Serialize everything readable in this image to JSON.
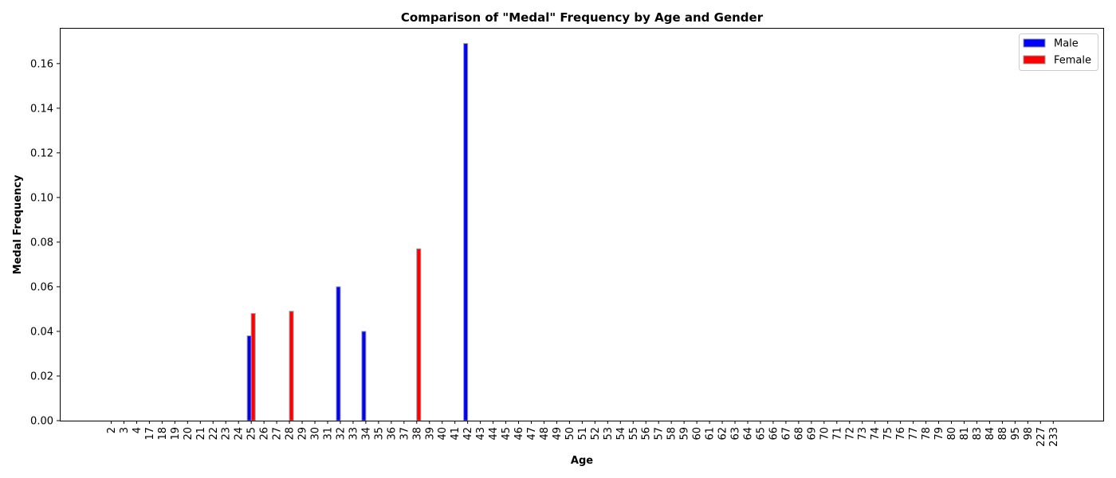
{
  "chart_data": {
    "type": "bar",
    "title": "Comparison of \"Medal\" Frequency by Age and Gender",
    "xlabel": "Age",
    "ylabel": "Medal Frequency",
    "ylim": [
      0,
      0.176
    ],
    "yticks": [
      "0.00",
      "0.02",
      "0.04",
      "0.06",
      "0.08",
      "0.10",
      "0.12",
      "0.14",
      "0.16"
    ],
    "categories": [
      "2",
      "3",
      "4",
      "17",
      "18",
      "19",
      "20",
      "21",
      "22",
      "23",
      "24",
      "25",
      "26",
      "27",
      "28",
      "29",
      "30",
      "31",
      "32",
      "33",
      "34",
      "35",
      "36",
      "37",
      "38",
      "39",
      "40",
      "41",
      "42",
      "43",
      "44",
      "45",
      "46",
      "47",
      "48",
      "49",
      "50",
      "51",
      "52",
      "53",
      "54",
      "55",
      "56",
      "57",
      "58",
      "59",
      "60",
      "61",
      "62",
      "63",
      "64",
      "65",
      "66",
      "67",
      "68",
      "69",
      "70",
      "71",
      "72",
      "73",
      "74",
      "75",
      "76",
      "77",
      "78",
      "79",
      "80",
      "81",
      "83",
      "84",
      "88",
      "95",
      "98",
      "227",
      "233"
    ],
    "series": [
      {
        "name": "Male",
        "color": "#0000ff",
        "values": [
          0,
          0,
          0,
          0,
          0,
          0,
          0,
          0,
          0,
          0,
          0,
          0.038,
          0,
          0,
          0,
          0,
          0,
          0,
          0.06,
          0,
          0.04,
          0,
          0,
          0,
          0,
          0,
          0,
          0,
          0.169,
          0,
          0,
          0,
          0,
          0,
          0,
          0,
          0,
          0,
          0,
          0,
          0,
          0,
          0,
          0,
          0,
          0,
          0,
          0,
          0,
          0,
          0,
          0,
          0,
          0,
          0,
          0,
          0,
          0,
          0,
          0,
          0,
          0,
          0,
          0,
          0,
          0,
          0,
          0,
          0,
          0,
          0,
          0,
          0,
          0,
          0
        ]
      },
      {
        "name": "Female",
        "color": "#ff0000",
        "values": [
          0,
          0,
          0,
          0,
          0,
          0,
          0,
          0,
          0,
          0,
          0,
          0.048,
          0,
          0,
          0.049,
          0,
          0,
          0,
          0,
          0,
          0,
          0,
          0,
          0,
          0.077,
          0,
          0,
          0,
          0,
          0,
          0,
          0,
          0,
          0,
          0,
          0,
          0,
          0,
          0,
          0,
          0,
          0,
          0,
          0,
          0,
          0,
          0,
          0,
          0,
          0,
          0,
          0,
          0,
          0,
          0,
          0,
          0,
          0,
          0,
          0,
          0,
          0,
          0,
          0,
          0,
          0,
          0,
          0,
          0,
          0,
          0,
          0,
          0,
          0,
          0
        ]
      }
    ],
    "legend_position": "top-right",
    "grid": false
  }
}
